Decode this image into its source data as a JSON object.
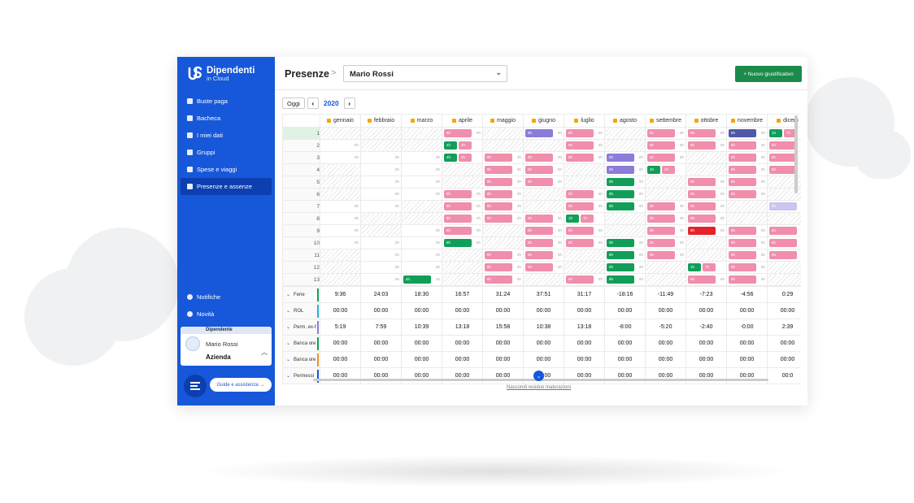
{
  "sidebar": {
    "logo_title": "Dipendenti",
    "logo_sub": "in Cloud",
    "items": [
      {
        "label": "Buste paga",
        "icon": "document-icon",
        "active": false
      },
      {
        "label": "Bacheca",
        "icon": "megaphone-icon",
        "active": false
      },
      {
        "label": "I miei dati",
        "icon": "user-icon",
        "active": false
      },
      {
        "label": "Gruppi",
        "icon": "group-icon",
        "active": false
      },
      {
        "label": "Spese e viaggi",
        "icon": "briefcase-icon",
        "active": false
      },
      {
        "label": "Presenze e assenze",
        "icon": "calendar-icon",
        "active": true
      }
    ],
    "bottom_items": [
      {
        "label": "Notifiche",
        "icon": "bell-icon"
      },
      {
        "label": "Novità",
        "icon": "drop-icon"
      }
    ],
    "user": {
      "role": "Dipendente",
      "name": "Mario Rossi",
      "company": "Azienda"
    },
    "help_label": "Guide e assistenza →"
  },
  "header": {
    "title": "Presenze",
    "separator": ">",
    "person": "Mario Rossi",
    "new_button": "+ Nuovo giustificativo"
  },
  "toolbar": {
    "today": "Oggi",
    "prev": "‹",
    "next": "›",
    "year": "2020"
  },
  "months": [
    "gennaio",
    "febbraio",
    "marzo",
    "aprile",
    "maggio",
    "giugno",
    "luglio",
    "agosto",
    "settembre",
    "ottobre",
    "novembre",
    "dicem"
  ],
  "rows": [
    {
      "day": "1",
      "cells": [
        [
          "h",
          ""
        ],
        [
          "h",
          ""
        ],
        [
          "h",
          ""
        ],
        [
          "pink",
          "8h"
        ],
        [
          "h",
          ""
        ],
        [
          "purple",
          "8h"
        ],
        [
          "pink",
          "8h"
        ],
        [
          "h",
          ""
        ],
        [
          "pink",
          "8h"
        ],
        [
          "pink",
          "8h"
        ],
        [
          "navy",
          "8h"
        ],
        [
          "green2",
          "1h|7h"
        ]
      ]
    },
    {
      "day": "2",
      "cells": [
        [
          "u",
          "8h"
        ],
        [
          "h",
          ""
        ],
        [
          "h",
          ""
        ],
        [
          "green2p",
          "4h|4h"
        ],
        [
          "h",
          ""
        ],
        [
          "h",
          ""
        ],
        [
          "pink",
          "8h"
        ],
        [
          "h",
          ""
        ],
        [
          "pink",
          "8h"
        ],
        [
          "pink",
          "8h"
        ],
        [
          "pink",
          "8h"
        ],
        [
          "pink",
          "8h"
        ]
      ]
    },
    {
      "day": "3",
      "cells": [
        [
          "u",
          "8h"
        ],
        [
          "u",
          "8h"
        ],
        [
          "u",
          "8h"
        ],
        [
          "green2p",
          "4h|4h"
        ],
        [
          "pink",
          "8h"
        ],
        [
          "pink",
          "8h"
        ],
        [
          "pink",
          "8h"
        ],
        [
          "purple",
          "8h"
        ],
        [
          "pink",
          "8h"
        ],
        [
          "h",
          ""
        ],
        [
          "pink",
          "8h"
        ],
        [
          "pink",
          "8h"
        ]
      ]
    },
    {
      "day": "4",
      "cells": [
        [
          "h",
          ""
        ],
        [
          "u",
          "8h"
        ],
        [
          "u",
          "8h"
        ],
        [
          "h",
          ""
        ],
        [
          "pink",
          "8h"
        ],
        [
          "pink",
          "8h"
        ],
        [
          "h",
          ""
        ],
        [
          "purple",
          "8h"
        ],
        [
          "green2p",
          "4h|4h"
        ],
        [
          "h",
          ""
        ],
        [
          "pink",
          "8h"
        ],
        [
          "pink",
          "8h"
        ]
      ]
    },
    {
      "day": "5",
      "cells": [
        [
          "h",
          ""
        ],
        [
          "u",
          "8h"
        ],
        [
          "u",
          "8h"
        ],
        [
          "h",
          ""
        ],
        [
          "pink",
          "8h"
        ],
        [
          "pink",
          "8h"
        ],
        [
          "h",
          ""
        ],
        [
          "green",
          "8h"
        ],
        [
          "h",
          ""
        ],
        [
          "pink",
          "8h"
        ],
        [
          "pink",
          "8h"
        ],
        [
          "h",
          ""
        ]
      ]
    },
    {
      "day": "6",
      "cells": [
        [
          "h",
          ""
        ],
        [
          "u",
          "8h"
        ],
        [
          "u",
          "8h"
        ],
        [
          "pink",
          "8h"
        ],
        [
          "pink",
          "8h"
        ],
        [
          "h",
          ""
        ],
        [
          "pink",
          "8h"
        ],
        [
          "green",
          "8h"
        ],
        [
          "h",
          ""
        ],
        [
          "pink",
          "8h"
        ],
        [
          "pink",
          "8h"
        ],
        [
          "h",
          ""
        ]
      ]
    },
    {
      "day": "7",
      "cells": [
        [
          "u",
          "8h"
        ],
        [
          "u",
          "8h"
        ],
        [
          "h",
          ""
        ],
        [
          "pink",
          "8h"
        ],
        [
          "pink",
          "8h"
        ],
        [
          "h",
          ""
        ],
        [
          "pink",
          "8h"
        ],
        [
          "green",
          "8h"
        ],
        [
          "pink",
          "8h"
        ],
        [
          "pink",
          "8h"
        ],
        [
          "h",
          ""
        ],
        [
          "lilac",
          "8h"
        ]
      ]
    },
    {
      "day": "8",
      "cells": [
        [
          "u",
          "8h"
        ],
        [
          "h",
          ""
        ],
        [
          "h",
          ""
        ],
        [
          "pink",
          "8h"
        ],
        [
          "pink",
          "8h"
        ],
        [
          "pink",
          "8h"
        ],
        [
          "green2",
          "1h|7h"
        ],
        [
          "h",
          ""
        ],
        [
          "pink",
          "8h"
        ],
        [
          "pink",
          "8h"
        ],
        [
          "h",
          ""
        ],
        [
          "h",
          ""
        ]
      ]
    },
    {
      "day": "9",
      "cells": [
        [
          "u",
          "8h"
        ],
        [
          "h",
          ""
        ],
        [
          "u",
          "8h"
        ],
        [
          "pink",
          "8h"
        ],
        [
          "h",
          ""
        ],
        [
          "pink",
          "8h"
        ],
        [
          "pink",
          "8h"
        ],
        [
          "h",
          ""
        ],
        [
          "pink",
          "8h"
        ],
        [
          "red",
          "8h"
        ],
        [
          "pink",
          "8h"
        ],
        [
          "pink",
          "8h"
        ]
      ]
    },
    {
      "day": "10",
      "cells": [
        [
          "u",
          "8h"
        ],
        [
          "u",
          "8h"
        ],
        [
          "u",
          "8h"
        ],
        [
          "green",
          "8h"
        ],
        [
          "h",
          ""
        ],
        [
          "pink",
          "8h"
        ],
        [
          "pink",
          "8h"
        ],
        [
          "green",
          "8h"
        ],
        [
          "pink",
          "8h"
        ],
        [
          "h",
          ""
        ],
        [
          "pink",
          "8h"
        ],
        [
          "pink",
          "8h"
        ]
      ]
    },
    {
      "day": "11",
      "cells": [
        [
          "h",
          ""
        ],
        [
          "u",
          "8h"
        ],
        [
          "u",
          "8h"
        ],
        [
          "h",
          ""
        ],
        [
          "pink",
          "8h"
        ],
        [
          "pink",
          "8h"
        ],
        [
          "h",
          ""
        ],
        [
          "green",
          "8h"
        ],
        [
          "pink",
          "8h"
        ],
        [
          "h",
          ""
        ],
        [
          "pink",
          "8h"
        ],
        [
          "pink",
          "8h"
        ]
      ]
    },
    {
      "day": "12",
      "cells": [
        [
          "h",
          ""
        ],
        [
          "u",
          "8h"
        ],
        [
          "u",
          "8h"
        ],
        [
          "h",
          ""
        ],
        [
          "pink",
          "8h"
        ],
        [
          "pink",
          "8h"
        ],
        [
          "h",
          ""
        ],
        [
          "green",
          "8h"
        ],
        [
          "h",
          ""
        ],
        [
          "green2p",
          "1h|7h"
        ],
        [
          "pink",
          "8h"
        ],
        [
          "h",
          ""
        ]
      ]
    },
    {
      "day": "13",
      "cells": [
        [
          "h",
          ""
        ],
        [
          "u",
          "8h"
        ],
        [
          "green",
          "4h"
        ],
        [
          "h",
          ""
        ],
        [
          "pink",
          "8h"
        ],
        [
          "h",
          ""
        ],
        [
          "pink",
          "8h"
        ],
        [
          "green",
          "8h"
        ],
        [
          "h",
          ""
        ],
        [
          "pink",
          "8h"
        ],
        [
          "pink",
          "8h"
        ],
        [
          "h",
          ""
        ]
      ]
    }
  ],
  "totals": [
    {
      "label": "Ferie",
      "color": "#129e59",
      "values": [
        "9:36",
        "24:03",
        "18:30",
        "16:57",
        "31:24",
        "37:51",
        "31:17",
        "-18:16",
        "-11:49",
        "-7:23",
        "-4:56",
        "0:29"
      ]
    },
    {
      "label": "ROL",
      "color": "#1fb3c9",
      "values": [
        "00:00",
        "00:00",
        "00:00",
        "00:00",
        "00:00",
        "00:00",
        "00:00",
        "00:00",
        "00:00",
        "00:00",
        "00:00",
        "00:00"
      ]
    },
    {
      "label": "Perm. ex-f",
      "color": "#8d7bd9",
      "values": [
        "5:19",
        "7:59",
        "10:39",
        "13:18",
        "15:58",
        "10:38",
        "13:18",
        "-8:00",
        "-5:20",
        "-2:40",
        "-0:00",
        "2:39"
      ]
    },
    {
      "label": "Banca ore",
      "color": "#129e59",
      "values": [
        "00:00",
        "00:00",
        "00:00",
        "00:00",
        "00:00",
        "00:00",
        "00:00",
        "00:00",
        "00:00",
        "00:00",
        "00:00",
        "00:00"
      ]
    },
    {
      "label": "Banca ore",
      "color": "#f08f24",
      "values": [
        "00:00",
        "00:00",
        "00:00",
        "00:00",
        "00:00",
        "00:00",
        "00:00",
        "00:00",
        "00:00",
        "00:00",
        "00:00",
        "00:00"
      ]
    },
    {
      "label": "Permessi",
      "color": "#1757d9",
      "values": [
        "00:00",
        "00:00",
        "00:00",
        "00:00",
        "00:00",
        "00:00",
        "00:00",
        "00:00",
        "00:00",
        "00:00",
        "00:00",
        "00:0"
      ]
    }
  ],
  "hide_link": "Nascondi residuo maturazioni"
}
